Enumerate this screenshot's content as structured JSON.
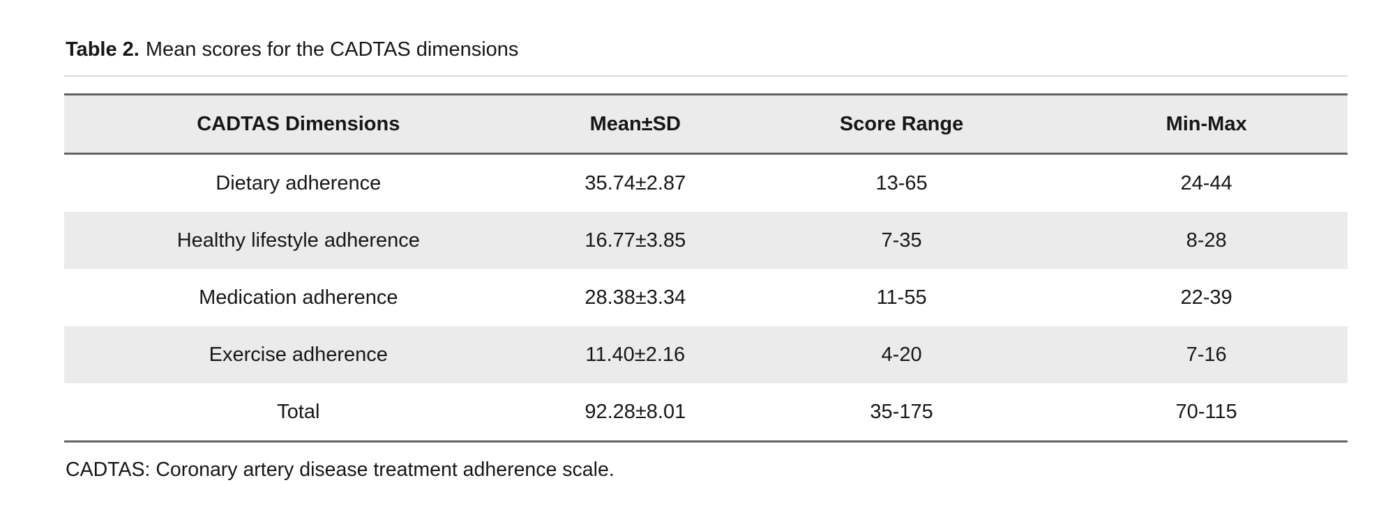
{
  "caption": {
    "label": "Table 2.",
    "text": "Mean scores for the CADTAS dimensions"
  },
  "table": {
    "columns": [
      "CADTAS Dimensions",
      "Mean±SD",
      "Score Range",
      "Min-Max"
    ],
    "rows": [
      [
        "Dietary adherence",
        "35.74±2.87",
        "13-65",
        "24-44"
      ],
      [
        "Healthy lifestyle adherence",
        "16.77±3.85",
        "7-35",
        "8-28"
      ],
      [
        "Medication adherence",
        "28.38±3.34",
        "11-55",
        "22-39"
      ],
      [
        "Exercise adherence",
        "11.40±2.16",
        "4-20",
        "7-16"
      ],
      [
        "Total",
        "92.28±8.01",
        "35-175",
        "70-115"
      ]
    ]
  },
  "footnote": "CADTAS: Coronary artery disease treatment adherence scale.",
  "colors": {
    "row_shade": "#ebebeb",
    "border_dark": "#626262",
    "border_light": "#d9d9d9",
    "text": "#161616",
    "background": "#ffffff"
  }
}
